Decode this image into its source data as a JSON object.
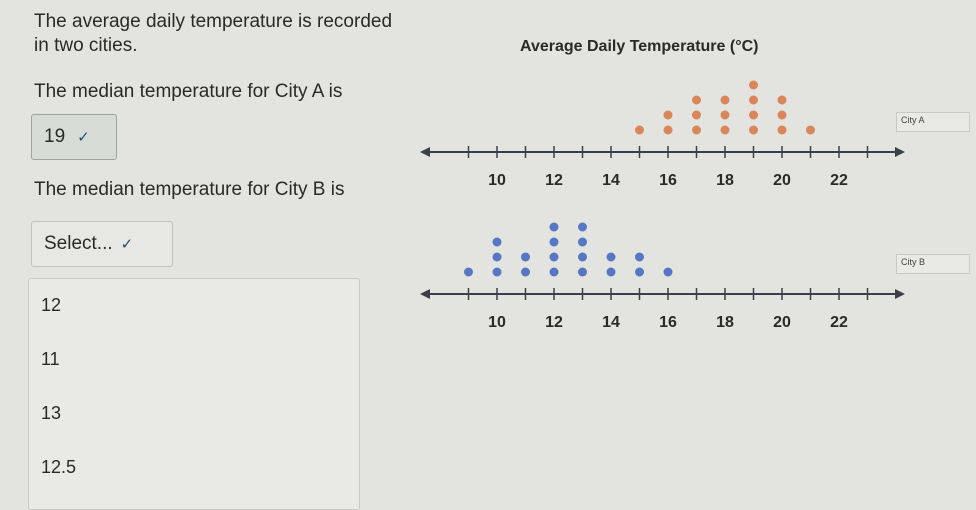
{
  "question": {
    "intro": "The average daily temperature is recorded in two cities.",
    "prompt_a": "The median temperature for City A is",
    "prompt_b": "The median temperature for City B is"
  },
  "dropdown_a": {
    "selected": "19"
  },
  "dropdown_b": {
    "selected": "Select..."
  },
  "dropdown_b_options": [
    "12",
    "11",
    "13",
    "12.5"
  ],
  "icons": {
    "dropdown_chevron": "chevron-down-icon"
  },
  "colors": {
    "city_a_dots": "#d9875a",
    "city_b_dots": "#5577c4"
  },
  "chart_data": [
    {
      "type": "scatter",
      "title": "Average Daily Temperature (°C)",
      "legend": "City A",
      "x": [
        15,
        16,
        16,
        17,
        17,
        17,
        18,
        18,
        18,
        19,
        19,
        19,
        19,
        20,
        20,
        20,
        21
      ],
      "xticks": [
        10,
        12,
        14,
        16,
        18,
        20,
        22
      ],
      "xlim": [
        8,
        23
      ]
    },
    {
      "type": "scatter",
      "title": "",
      "legend": "City B",
      "x": [
        9,
        10,
        10,
        10,
        11,
        11,
        12,
        12,
        12,
        12,
        13,
        13,
        13,
        13,
        14,
        14,
        15,
        15,
        16
      ],
      "xticks": [
        10,
        12,
        14,
        16,
        18,
        20,
        22
      ],
      "xlim": [
        8,
        23
      ]
    }
  ]
}
